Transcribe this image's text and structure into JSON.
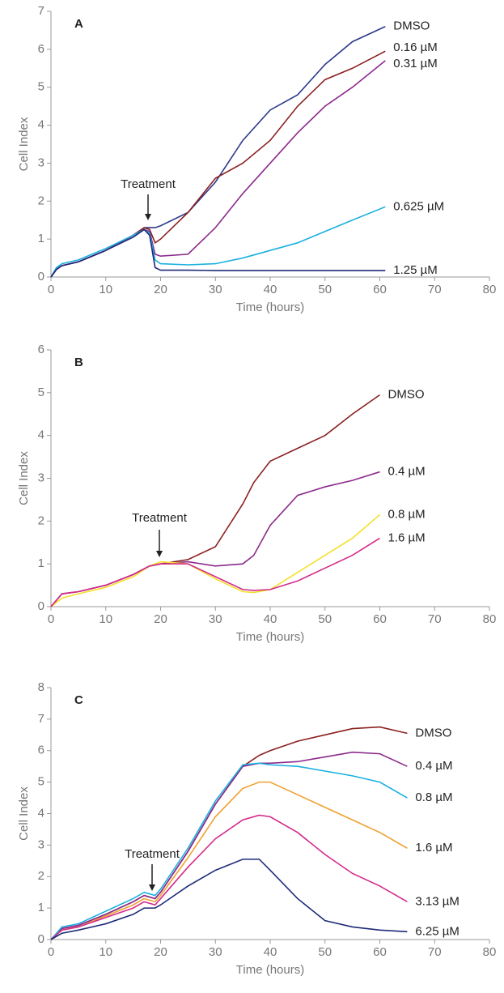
{
  "chart_data": [
    {
      "type": "line",
      "title": "A",
      "x_label": "Time (hours)",
      "y_label": "Cell Index",
      "annotation": "Treatment",
      "xlim": [
        0,
        80
      ],
      "xticks": [
        0,
        10,
        20,
        30,
        40,
        50,
        60,
        70,
        80
      ],
      "ylim": [
        0,
        7
      ],
      "yticks": [
        0,
        1,
        2,
        3,
        4,
        5,
        6,
        7
      ],
      "x": [
        0,
        1,
        2,
        5,
        10,
        15,
        17,
        18,
        19,
        20,
        25,
        30,
        35,
        40,
        45,
        50,
        55,
        61
      ],
      "series": [
        {
          "name": "DMSO",
          "color": "#2e3a8c",
          "values": [
            0,
            0.2,
            0.3,
            0.4,
            0.7,
            1.1,
            1.3,
            1.3,
            1.3,
            1.35,
            1.7,
            2.5,
            3.6,
            4.4,
            4.8,
            5.6,
            6.2,
            6.6
          ]
        },
        {
          "name": "0.16 µM",
          "color": "#8b2020",
          "values": [
            0,
            0.2,
            0.3,
            0.4,
            0.7,
            1.1,
            1.3,
            1.25,
            0.9,
            1.0,
            1.7,
            2.6,
            3.0,
            3.6,
            4.5,
            5.2,
            5.5,
            5.95
          ]
        },
        {
          "name": "0.31 µM",
          "color": "#8b2a8b",
          "values": [
            0,
            0.2,
            0.3,
            0.4,
            0.7,
            1.1,
            1.25,
            1.2,
            0.6,
            0.55,
            0.6,
            1.3,
            2.2,
            3.0,
            3.8,
            4.5,
            5.0,
            5.7
          ]
        },
        {
          "name": "0.625 µM",
          "color": "#1ab0e0",
          "values": [
            0,
            0.25,
            0.35,
            0.45,
            0.75,
            1.1,
            1.25,
            1.15,
            0.45,
            0.35,
            0.32,
            0.35,
            0.5,
            0.7,
            0.9,
            1.2,
            1.5,
            1.85
          ]
        },
        {
          "name": "1.25 µM",
          "color": "#1e2a78",
          "values": [
            0,
            0.2,
            0.3,
            0.4,
            0.7,
            1.05,
            1.25,
            1.1,
            0.25,
            0.18,
            0.18,
            0.17,
            0.17,
            0.17,
            0.17,
            0.17,
            0.17,
            0.17
          ]
        }
      ]
    },
    {
      "type": "line",
      "title": "B",
      "x_label": "Time (hours)",
      "y_label": "Cell Index",
      "annotation": "Treatment",
      "xlim": [
        0,
        80
      ],
      "xticks": [
        0,
        10,
        20,
        30,
        40,
        50,
        60,
        70,
        80
      ],
      "ylim": [
        0,
        6
      ],
      "yticks": [
        0,
        1,
        2,
        3,
        4,
        5,
        6
      ],
      "x": [
        0,
        2,
        5,
        10,
        15,
        18,
        20,
        25,
        30,
        35,
        37,
        40,
        45,
        50,
        55,
        60
      ],
      "series": [
        {
          "name": "DMSO",
          "color": "#8b2020",
          "values": [
            0,
            0.3,
            0.35,
            0.5,
            0.75,
            0.95,
            1.0,
            1.1,
            1.4,
            2.4,
            2.9,
            3.4,
            3.7,
            4.0,
            4.5,
            4.95
          ]
        },
        {
          "name": "0.4 µM",
          "color": "#8b2a8b",
          "values": [
            0,
            0.3,
            0.35,
            0.5,
            0.75,
            0.95,
            1.0,
            1.05,
            0.95,
            1.0,
            1.2,
            1.9,
            2.6,
            2.8,
            2.95,
            3.15
          ]
        },
        {
          "name": "0.8 µM",
          "color": "#f5e02a",
          "values": [
            0,
            0.2,
            0.3,
            0.45,
            0.7,
            0.95,
            1.05,
            1.0,
            0.65,
            0.35,
            0.33,
            0.4,
            0.8,
            1.2,
            1.6,
            2.15
          ]
        },
        {
          "name": "1.6 µM",
          "color": "#d42a8a",
          "values": [
            0,
            0.3,
            0.35,
            0.5,
            0.75,
            0.95,
            1.0,
            1.0,
            0.7,
            0.4,
            0.38,
            0.4,
            0.6,
            0.9,
            1.2,
            1.6
          ]
        }
      ]
    },
    {
      "type": "line",
      "title": "C",
      "x_label": "Time (hours)",
      "y_label": "Cell Index",
      "annotation": "Treatment",
      "xlim": [
        0,
        80
      ],
      "xticks": [
        0,
        10,
        20,
        30,
        40,
        50,
        60,
        70,
        80
      ],
      "ylim": [
        0,
        8
      ],
      "yticks": [
        0,
        1,
        2,
        3,
        4,
        5,
        6,
        7,
        8
      ],
      "x": [
        0,
        2,
        5,
        10,
        15,
        17,
        19,
        20,
        25,
        30,
        35,
        38,
        40,
        45,
        50,
        55,
        60,
        65
      ],
      "series": [
        {
          "name": "DMSO",
          "color": "#8b2020",
          "values": [
            0,
            0.35,
            0.45,
            0.8,
            1.2,
            1.4,
            1.3,
            1.5,
            2.8,
            4.3,
            5.5,
            5.85,
            6.0,
            6.3,
            6.5,
            6.7,
            6.75,
            6.55
          ]
        },
        {
          "name": "0.4 µM",
          "color": "#8b2a8b",
          "values": [
            0,
            0.35,
            0.45,
            0.8,
            1.2,
            1.4,
            1.3,
            1.5,
            2.8,
            4.3,
            5.5,
            5.6,
            5.6,
            5.65,
            5.8,
            5.95,
            5.9,
            5.5
          ]
        },
        {
          "name": "0.8 µM",
          "color": "#1ab0e0",
          "values": [
            0,
            0.4,
            0.5,
            0.9,
            1.3,
            1.5,
            1.4,
            1.6,
            2.9,
            4.4,
            5.55,
            5.6,
            5.55,
            5.5,
            5.35,
            5.2,
            5.0,
            4.5
          ]
        },
        {
          "name": "1.6 µM",
          "color": "#f0a030",
          "values": [
            0,
            0.3,
            0.4,
            0.75,
            1.1,
            1.3,
            1.2,
            1.4,
            2.6,
            3.9,
            4.8,
            5.0,
            5.0,
            4.6,
            4.2,
            3.8,
            3.4,
            2.9
          ]
        },
        {
          "name": "3.13 µM",
          "color": "#d42a8a",
          "values": [
            0,
            0.3,
            0.4,
            0.7,
            1.0,
            1.2,
            1.1,
            1.3,
            2.3,
            3.2,
            3.8,
            3.95,
            3.9,
            3.4,
            2.7,
            2.1,
            1.7,
            1.2
          ]
        },
        {
          "name": "6.25 µM",
          "color": "#1e2a78",
          "values": [
            0,
            0.2,
            0.3,
            0.5,
            0.8,
            1.0,
            1.0,
            1.1,
            1.7,
            2.2,
            2.55,
            2.55,
            2.2,
            1.3,
            0.6,
            0.4,
            0.3,
            0.25
          ]
        }
      ]
    }
  ]
}
